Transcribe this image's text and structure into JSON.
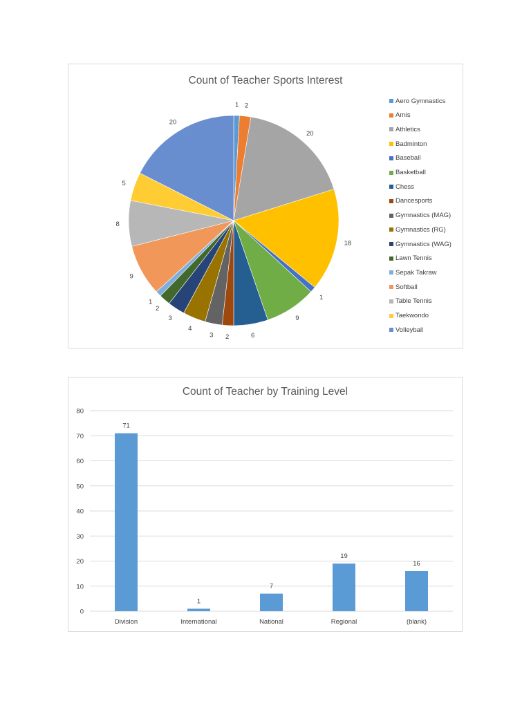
{
  "chart_data": [
    {
      "type": "pie",
      "title": "Count of Teacher Sports Interest",
      "legend_position": "right",
      "categories": [
        "Aero Gymnastics",
        "Arnis",
        "Athletics",
        "Badminton",
        "Baseball",
        "Basketball",
        "Chess",
        "Dancesports",
        "Gymnastics (MAG)",
        "Gymnastics (RG)",
        "Gymnastics (WAG)",
        "Lawn Tennis",
        "Sepak Takraw",
        "Softball",
        "Table Tennis",
        "Taekwondo",
        "Volleyball"
      ],
      "values": [
        1,
        2,
        20,
        18,
        1,
        9,
        6,
        2,
        3,
        4,
        3,
        2,
        1,
        9,
        8,
        5,
        20
      ],
      "colors": [
        "#5b9bd5",
        "#ed7d31",
        "#a5a5a5",
        "#ffc000",
        "#4472c4",
        "#70ad47",
        "#255e91",
        "#9e480e",
        "#636363",
        "#997300",
        "#264478",
        "#43682b",
        "#7cafdd",
        "#f1975a",
        "#b7b7b7",
        "#ffcd33",
        "#698ed0"
      ]
    },
    {
      "type": "bar",
      "title": "Count of Teacher by Training Level",
      "xlabel": "",
      "ylabel": "",
      "categories": [
        "Division",
        "International",
        "National",
        "Regional",
        "(blank)"
      ],
      "values": [
        71,
        1,
        7,
        19,
        16
      ],
      "ylim": [
        0,
        80
      ],
      "yticks": [
        0,
        10,
        20,
        30,
        40,
        50,
        60,
        70,
        80
      ],
      "grid": true,
      "bar_color": "#5b9bd5",
      "data_labels": true
    }
  ]
}
